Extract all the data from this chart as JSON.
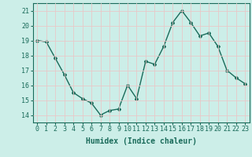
{
  "x": [
    0,
    1,
    2,
    3,
    4,
    5,
    6,
    7,
    8,
    9,
    10,
    11,
    12,
    13,
    14,
    15,
    16,
    17,
    18,
    19,
    20,
    21,
    22,
    23
  ],
  "y": [
    19.0,
    18.9,
    17.8,
    16.7,
    15.5,
    15.1,
    14.8,
    14.0,
    14.3,
    14.4,
    16.0,
    15.1,
    17.6,
    17.4,
    18.6,
    20.2,
    21.0,
    20.2,
    19.3,
    19.5,
    18.6,
    17.0,
    16.5,
    16.1
  ],
  "line_color": "#1a6b5a",
  "marker": "D",
  "markersize": 2.0,
  "linewidth": 1.0,
  "xlabel": "Humidex (Indice chaleur)",
  "xlim": [
    -0.5,
    23.5
  ],
  "ylim": [
    13.5,
    21.5
  ],
  "yticks": [
    14,
    15,
    16,
    17,
    18,
    19,
    20,
    21
  ],
  "xticks": [
    0,
    1,
    2,
    3,
    4,
    5,
    6,
    7,
    8,
    9,
    10,
    11,
    12,
    13,
    14,
    15,
    16,
    17,
    18,
    19,
    20,
    21,
    22,
    23
  ],
  "xtick_labels": [
    "0",
    "1",
    "2",
    "3",
    "4",
    "5",
    "6",
    "7",
    "8",
    "9",
    "10",
    "11",
    "12",
    "13",
    "14",
    "15",
    "16",
    "17",
    "18",
    "19",
    "20",
    "21",
    "22",
    "23"
  ],
  "bg_color": "#cceee8",
  "grid_color": "#e8c8c8",
  "border_color": "#1a6b5a",
  "xlabel_fontsize": 7,
  "tick_fontsize": 6,
  "tick_color": "#1a6b5a"
}
